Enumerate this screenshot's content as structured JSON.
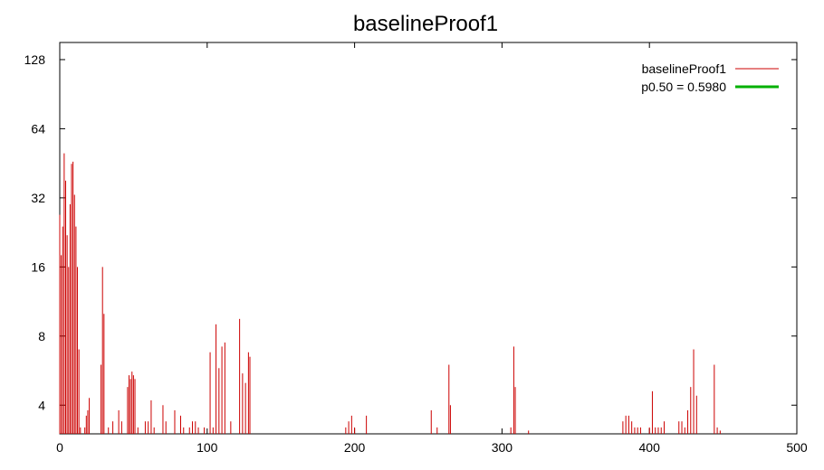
{
  "chart_data": {
    "type": "line",
    "title": "baselineProof1",
    "xlabel": "",
    "ylabel": "",
    "xlim": [
      0,
      500
    ],
    "ylim_log2": [
      3,
      152
    ],
    "y_scale": "log2",
    "x_ticks": [
      0,
      100,
      200,
      300,
      400,
      500
    ],
    "y_ticks": [
      4,
      8,
      16,
      32,
      64,
      128
    ],
    "grid": false,
    "legend_position": "top-right",
    "series": [
      {
        "name": "baselineProof1",
        "color": "#cc0000",
        "style": "impulse",
        "points": [
          [
            0,
            27
          ],
          [
            1,
            18
          ],
          [
            2,
            24
          ],
          [
            3,
            50
          ],
          [
            4,
            38
          ],
          [
            5,
            22
          ],
          [
            6,
            16
          ],
          [
            7,
            30
          ],
          [
            8,
            45
          ],
          [
            9,
            46
          ],
          [
            10,
            33
          ],
          [
            11,
            24
          ],
          [
            12,
            16
          ],
          [
            13,
            7
          ],
          [
            14,
            3.2
          ],
          [
            17,
            3.2
          ],
          [
            18,
            3.6
          ],
          [
            19,
            3.8
          ],
          [
            20,
            4.3
          ],
          [
            28,
            6
          ],
          [
            29,
            16
          ],
          [
            30,
            10
          ],
          [
            33,
            3.2
          ],
          [
            36,
            3.4
          ],
          [
            40,
            3.8
          ],
          [
            42,
            3.4
          ],
          [
            46,
            4.8
          ],
          [
            47,
            5.4
          ],
          [
            48,
            5.2
          ],
          [
            49,
            5.6
          ],
          [
            50,
            5.4
          ],
          [
            51,
            5.2
          ],
          [
            53,
            3.2
          ],
          [
            58,
            3.4
          ],
          [
            60,
            3.4
          ],
          [
            62,
            4.2
          ],
          [
            64,
            3.2
          ],
          [
            70,
            4
          ],
          [
            72,
            3.4
          ],
          [
            78,
            3.8
          ],
          [
            82,
            3.6
          ],
          [
            84,
            3.2
          ],
          [
            88,
            3.2
          ],
          [
            90,
            3.4
          ],
          [
            92,
            3.4
          ],
          [
            94,
            3.2
          ],
          [
            98,
            3.2
          ],
          [
            102,
            6.8
          ],
          [
            104,
            3.2
          ],
          [
            106,
            9
          ],
          [
            108,
            5.8
          ],
          [
            110,
            7.2
          ],
          [
            112,
            7.5
          ],
          [
            116,
            3.4
          ],
          [
            122,
            9.5
          ],
          [
            124,
            5.5
          ],
          [
            126,
            5
          ],
          [
            128,
            6.8
          ],
          [
            129,
            6.5
          ],
          [
            194,
            3.2
          ],
          [
            196,
            3.4
          ],
          [
            198,
            3.6
          ],
          [
            200,
            3.2
          ],
          [
            208,
            3.6
          ],
          [
            252,
            3.8
          ],
          [
            256,
            3.2
          ],
          [
            264,
            6
          ],
          [
            265,
            4
          ],
          [
            306,
            3.2
          ],
          [
            308,
            7.2
          ],
          [
            309,
            4.8
          ],
          [
            318,
            3.1
          ],
          [
            382,
            3.4
          ],
          [
            384,
            3.6
          ],
          [
            386,
            3.6
          ],
          [
            388,
            3.4
          ],
          [
            390,
            3.2
          ],
          [
            392,
            3.2
          ],
          [
            394,
            3.2
          ],
          [
            400,
            3.2
          ],
          [
            402,
            4.6
          ],
          [
            404,
            3.2
          ],
          [
            406,
            3.2
          ],
          [
            408,
            3.2
          ],
          [
            410,
            3.4
          ],
          [
            420,
            3.4
          ],
          [
            422,
            3.4
          ],
          [
            424,
            3.2
          ],
          [
            426,
            3.8
          ],
          [
            428,
            4.8
          ],
          [
            430,
            7
          ],
          [
            432,
            4.4
          ],
          [
            444,
            6
          ],
          [
            446,
            3.2
          ],
          [
            448,
            3.1
          ]
        ]
      },
      {
        "name": "p0.50 = 0.5980",
        "color": "#00b000",
        "style": "line",
        "y_constant": 0.598
      }
    ]
  }
}
